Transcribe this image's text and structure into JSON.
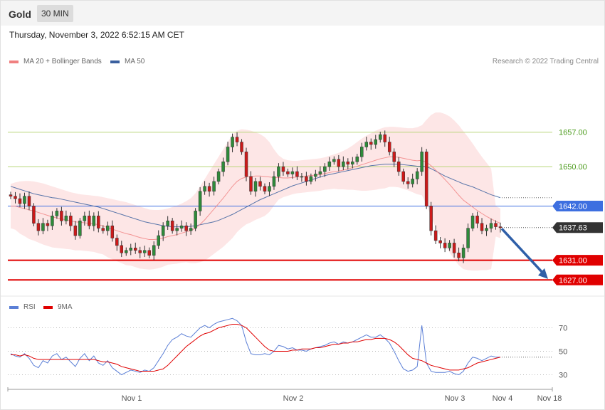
{
  "header": {
    "title": "Gold",
    "timeframe": "30 MIN",
    "datetime": "Thursday, November 3, 2022 6:52:15 AM CET"
  },
  "legend": {
    "ma20": {
      "label": "MA 20 + Bollinger Bands",
      "color": "#f08080"
    },
    "ma50": {
      "label": "MA 50",
      "color": "#3a5f9e"
    },
    "credit": "Research © 2022 Trading Central"
  },
  "rsi_legend": {
    "rsi": {
      "label": "RSI",
      "color": "#5b7fd6"
    },
    "ma9": {
      "label": "9MA",
      "color": "#e00000"
    }
  },
  "colors": {
    "up": "#2e8b3a",
    "down": "#cc1a1a",
    "resistance": "#b8d67a",
    "pivot": "#3d6fe0",
    "support": "#e00000",
    "current": "#333333",
    "arrow": "#2f5fa8",
    "band_fill": "#fde3e3"
  },
  "levels": [
    {
      "price": 1657.0,
      "label": "1657.00",
      "type": "resistance"
    },
    {
      "price": 1650.0,
      "label": "1650.00",
      "type": "resistance"
    },
    {
      "price": 1642.0,
      "label": "1642.00",
      "type": "pivot"
    },
    {
      "price": 1637.63,
      "label": "1637.63",
      "type": "current"
    },
    {
      "price": 1631.0,
      "label": "1631.00",
      "type": "support"
    },
    {
      "price": 1627.0,
      "label": "1627.00",
      "type": "support"
    }
  ],
  "x_axis": {
    "ticks": [
      "Nov 1",
      "Nov 2",
      "Nov 3",
      "Nov 4",
      "Nov 18"
    ]
  },
  "rsi_axis": {
    "ticks": [
      "70",
      "50",
      "30"
    ]
  },
  "chart_data": [
    {
      "type": "candlestick",
      "name": "price",
      "ylim": [
        1625,
        1672
      ],
      "close": [
        1644,
        1643.5,
        1642.5,
        1644,
        1642,
        1638.5,
        1637,
        1638.5,
        1638,
        1640,
        1641,
        1639,
        1640,
        1638,
        1636,
        1639,
        1640,
        1638,
        1640,
        1637.5,
        1637,
        1638,
        1635.5,
        1634,
        1632.5,
        1633,
        1633.5,
        1633,
        1632.5,
        1633,
        1632,
        1634,
        1636,
        1638,
        1639,
        1637,
        1637.5,
        1638,
        1637,
        1637.5,
        1641,
        1645,
        1646,
        1645,
        1647,
        1649,
        1651,
        1654,
        1656,
        1655,
        1653,
        1648,
        1645,
        1647,
        1646,
        1645,
        1646,
        1648,
        1650,
        1649,
        1648.5,
        1649,
        1648,
        1648,
        1647,
        1648,
        1648.5,
        1649,
        1650,
        1651,
        1651.5,
        1650,
        1651,
        1650.5,
        1651,
        1652,
        1654,
        1655,
        1654.5,
        1655.5,
        1656.5,
        1655,
        1653,
        1651,
        1649,
        1647,
        1646.5,
        1647.5,
        1649,
        1653,
        1642,
        1637,
        1635,
        1634.5,
        1633.5,
        1634.5,
        1632.5,
        1631.5,
        1633.5,
        1637.5,
        1640,
        1638.5,
        1637,
        1637.5,
        1638.5,
        1637.8,
        1637.6
      ],
      "ma20": [
        1642,
        1642,
        1641.7,
        1641.5,
        1641.2,
        1641,
        1640.7,
        1640.4,
        1640.1,
        1639.8,
        1639.6,
        1639.4,
        1639.2,
        1639,
        1638.8,
        1638.7,
        1638.6,
        1638.5,
        1638.4,
        1638.2,
        1638,
        1637.6,
        1637.3,
        1637,
        1636.7,
        1636.4,
        1636.2,
        1635.9,
        1635.6,
        1635.4,
        1635.2,
        1635.2,
        1635.3,
        1635.5,
        1635.8,
        1636,
        1636.2,
        1636.5,
        1636.8,
        1637,
        1637.5,
        1638.3,
        1639.2,
        1640.3,
        1641.4,
        1642.5,
        1643.6,
        1644.8,
        1646,
        1647,
        1647.6,
        1647.9,
        1648,
        1648.1,
        1648.1,
        1648,
        1647.9,
        1647.8,
        1647.8,
        1647.7,
        1647.7,
        1647.8,
        1647.9,
        1648,
        1648.1,
        1648.2,
        1648.3,
        1648.4,
        1648.6,
        1648.8,
        1649,
        1649.1,
        1649.3,
        1649.5,
        1649.8,
        1650.1,
        1650.4,
        1650.7,
        1651,
        1651.3,
        1651.6,
        1651.8,
        1652,
        1652,
        1651.9,
        1651.7,
        1651.5,
        1651.3,
        1651.2,
        1651.3,
        1650.9,
        1650.2,
        1649.3,
        1648.4,
        1647.4,
        1646.4,
        1645.3,
        1644.2,
        1643.2,
        1642.5,
        1641.8,
        1641.1,
        1640.5,
        1639.9,
        1639.4,
        1638.9,
        1638.5
      ],
      "ma20_band_upper": [
        1646.5,
        1646.8,
        1647,
        1647.1,
        1647.1,
        1647,
        1646.8,
        1646.6,
        1646.3,
        1646,
        1645.7,
        1645.4,
        1645.1,
        1644.8,
        1644.6,
        1644.4,
        1644.3,
        1644.2,
        1644.1,
        1644,
        1643.8,
        1643.6,
        1643.4,
        1643.2,
        1643,
        1642.8,
        1642.5,
        1642.2,
        1641.9,
        1641.6,
        1641.3,
        1641.2,
        1641.2,
        1641.3,
        1641.5,
        1641.8,
        1642.1,
        1642.5,
        1643,
        1643.6,
        1644.6,
        1646,
        1647.5,
        1649,
        1650.5,
        1652,
        1653.5,
        1655,
        1656.5,
        1657.3,
        1657.6,
        1657.5,
        1657.3,
        1657,
        1656.6,
        1656,
        1655,
        1653.5,
        1652.3,
        1651.6,
        1651.3,
        1651.2,
        1651.2,
        1651.3,
        1651.4,
        1651.5,
        1651.6,
        1651.7,
        1651.9,
        1652.2,
        1652.5,
        1652.8,
        1653.2,
        1653.7,
        1654.3,
        1655,
        1655.7,
        1656.3,
        1656.8,
        1657.3,
        1657.7,
        1658,
        1658.1,
        1658.1,
        1658,
        1657.9,
        1657.8,
        1657.8,
        1658,
        1658.4,
        1659.5,
        1660.5,
        1661,
        1661,
        1660.7,
        1660.2,
        1659.4,
        1658.4,
        1657.2,
        1656,
        1654.7,
        1653.3,
        1652,
        1650.8,
        1649.6,
        1642,
        1641.5
      ],
      "ma20_band_lower": [
        1637.5,
        1637.2,
        1636.4,
        1635.9,
        1635.3,
        1635,
        1634.6,
        1634.2,
        1633.9,
        1633.6,
        1633.5,
        1633.4,
        1633.3,
        1633.2,
        1633,
        1633,
        1632.9,
        1632.8,
        1632.7,
        1632.4,
        1632.2,
        1631.6,
        1631.2,
        1630.8,
        1630.4,
        1630,
        1629.9,
        1629.6,
        1629.3,
        1629.2,
        1629.1,
        1629.2,
        1629.4,
        1629.7,
        1630.1,
        1630.2,
        1630.3,
        1630.5,
        1630.6,
        1630.4,
        1630.4,
        1630.6,
        1630.9,
        1631.6,
        1632.3,
        1633,
        1633.7,
        1634.6,
        1635.5,
        1636.7,
        1637.6,
        1638.3,
        1638.7,
        1639.2,
        1639.6,
        1640,
        1640.8,
        1642.1,
        1643.3,
        1643.8,
        1644.1,
        1644.4,
        1644.6,
        1644.7,
        1644.8,
        1644.9,
        1645,
        1645.1,
        1645.3,
        1645.4,
        1645.5,
        1645.4,
        1645.4,
        1645.3,
        1645.3,
        1645.2,
        1645.1,
        1645.1,
        1645.2,
        1645.3,
        1645.5,
        1645.6,
        1645.9,
        1645.9,
        1645.8,
        1645.5,
        1645.2,
        1644.8,
        1644.4,
        1644.2,
        1642.3,
        1639.9,
        1637.6,
        1635.8,
        1634.1,
        1632.6,
        1631.2,
        1630,
        1629.2,
        1629,
        1628.9,
        1628.9,
        1629,
        1629,
        1629.2,
        1635.8,
        1635.5
      ],
      "ma50": [
        1646,
        1645.7,
        1645.4,
        1645.1,
        1644.8,
        1644.5,
        1644.3,
        1644.1,
        1643.9,
        1643.7,
        1643.6,
        1643.4,
        1643.2,
        1643,
        1642.8,
        1642.6,
        1642.4,
        1642.2,
        1642,
        1641.8,
        1641.5,
        1641.2,
        1640.9,
        1640.6,
        1640.3,
        1640,
        1639.7,
        1639.4,
        1639.1,
        1638.8,
        1638.6,
        1638.4,
        1638.2,
        1638,
        1637.9,
        1637.8,
        1637.8,
        1637.8,
        1637.8,
        1637.9,
        1638,
        1638.2,
        1638.4,
        1638.6,
        1638.8,
        1639.1,
        1639.5,
        1639.9,
        1640.3,
        1640.8,
        1641.3,
        1641.8,
        1642.3,
        1642.8,
        1643.3,
        1643.7,
        1644.1,
        1644.5,
        1644.9,
        1645.3,
        1645.7,
        1646.1,
        1646.4,
        1646.7,
        1647,
        1647.3,
        1647.6,
        1647.9,
        1648.2,
        1648.4,
        1648.6,
        1648.8,
        1649,
        1649.2,
        1649.4,
        1649.6,
        1649.8,
        1650,
        1650.2,
        1650.3,
        1650.4,
        1650.5,
        1650.5,
        1650.5,
        1650.5,
        1650.4,
        1650.3,
        1650.2,
        1650.1,
        1650.1,
        1650,
        1649.6,
        1649.1,
        1648.6,
        1648.1,
        1647.7,
        1647.3,
        1646.9,
        1646.5,
        1646.2,
        1645.9,
        1645.5,
        1645.1,
        1644.7,
        1644.3,
        1644,
        1643.7
      ]
    },
    {
      "type": "line",
      "name": "rsi",
      "ylim": [
        20,
        85
      ],
      "rsi": [
        48,
        46,
        45,
        48,
        44,
        38,
        36,
        42,
        40,
        46,
        48,
        43,
        45,
        41,
        37,
        44,
        48,
        42,
        46,
        40,
        38,
        42,
        36,
        33,
        30,
        32,
        34,
        33,
        32,
        34,
        33,
        36,
        42,
        48,
        55,
        60,
        62,
        65,
        63,
        62,
        66,
        70,
        72,
        70,
        73,
        75,
        76,
        77,
        78,
        76,
        72,
        58,
        48,
        47,
        47,
        48,
        47,
        50,
        55,
        54,
        52,
        53,
        51,
        51,
        50,
        52,
        53,
        54,
        55,
        57,
        58,
        56,
        58,
        57,
        58,
        60,
        62,
        64,
        62,
        62,
        64,
        61,
        57,
        50,
        42,
        35,
        33,
        34,
        37,
        72,
        40,
        33,
        32,
        32,
        32,
        33,
        31,
        30,
        33,
        40,
        45,
        44,
        42,
        44,
        46,
        45,
        45
      ],
      "ma9": [
        47,
        47,
        46,
        47,
        46,
        44,
        43,
        43,
        43,
        43,
        43,
        43,
        43,
        43,
        43,
        43,
        43,
        43,
        43,
        42,
        41,
        41,
        40,
        39,
        37,
        36,
        35,
        34,
        33,
        33,
        33,
        33,
        34,
        35,
        38,
        42,
        46,
        50,
        54,
        57,
        60,
        63,
        65,
        66,
        68,
        70,
        71,
        72,
        73,
        73,
        72,
        70,
        66,
        62,
        58,
        54,
        51,
        50,
        50,
        50,
        50,
        51,
        51,
        52,
        52,
        52,
        53,
        53,
        54,
        55,
        56,
        56,
        57,
        57,
        58,
        58,
        59,
        60,
        60,
        61,
        61,
        61,
        60,
        58,
        55,
        51,
        47,
        44,
        43,
        42,
        40,
        38,
        37,
        36,
        35,
        34,
        34,
        34,
        35,
        36,
        38,
        40,
        41,
        42,
        43,
        44,
        45
      ]
    }
  ]
}
